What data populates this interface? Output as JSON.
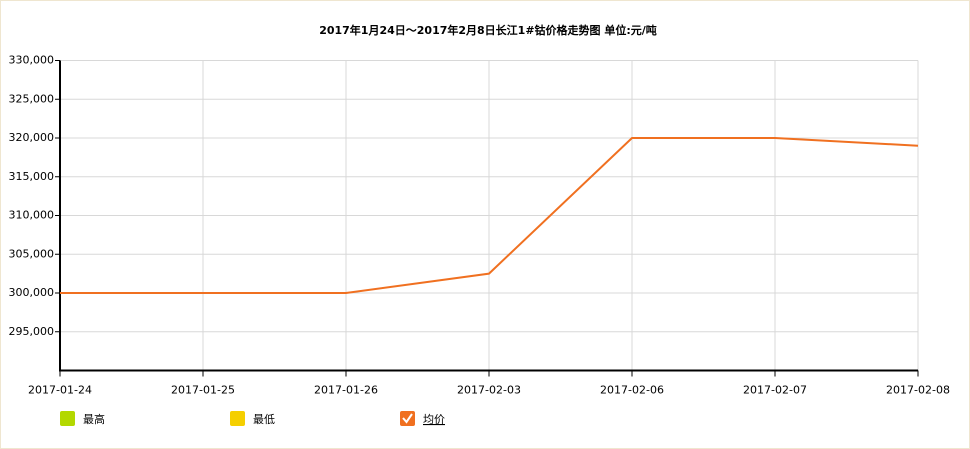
{
  "chart_data": {
    "type": "line",
    "title": "2017年1月24日～2017年2月8日长江1#钴价格走势图 单位:元/吨",
    "categories": [
      "2017-01-24",
      "2017-01-25",
      "2017-01-26",
      "2017-02-03",
      "2017-02-06",
      "2017-02-07",
      "2017-02-08"
    ],
    "series": [
      {
        "name": "最高",
        "color": "#b3d800",
        "visible": false,
        "values": [
          null,
          null,
          null,
          null,
          null,
          null,
          null
        ]
      },
      {
        "name": "最低",
        "color": "#f5cf00",
        "visible": false,
        "values": [
          null,
          null,
          null,
          null,
          null,
          null,
          null
        ]
      },
      {
        "name": "均价",
        "color": "#f07020",
        "visible": true,
        "values": [
          300000,
          300000,
          300000,
          302500,
          320000,
          320000,
          319000
        ]
      }
    ],
    "ylim": [
      290000,
      330000
    ],
    "yticks": [
      {
        "value": 295000,
        "label": "295,000"
      },
      {
        "value": 300000,
        "label": "300,000"
      },
      {
        "value": 305000,
        "label": "305,000"
      },
      {
        "value": 310000,
        "label": "310,000"
      },
      {
        "value": 315000,
        "label": "315,000"
      },
      {
        "value": 320000,
        "label": "320,000"
      },
      {
        "value": 325000,
        "label": "325,000"
      },
      {
        "value": 330000,
        "label": "330,000"
      }
    ],
    "grid": true
  }
}
